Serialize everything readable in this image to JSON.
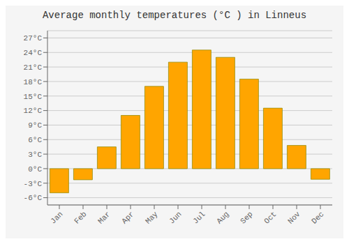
{
  "chart_data": {
    "type": "bar",
    "title": "Average monthly temperatures (°C ) in Linneus",
    "categories": [
      "Jan",
      "Feb",
      "Mar",
      "Apr",
      "May",
      "Jun",
      "Jul",
      "Aug",
      "Sep",
      "Oct",
      "Nov",
      "Dec"
    ],
    "values": [
      -5.0,
      -2.3,
      4.5,
      11.0,
      17.0,
      22.0,
      24.5,
      23.0,
      18.5,
      12.5,
      4.8,
      -2.2
    ],
    "color": "#FFA500",
    "ylim": [
      -7.5,
      28.5
    ],
    "yticks": [
      {
        "value": -6,
        "label": "-6°C"
      },
      {
        "value": -3,
        "label": "-3°C"
      },
      {
        "value": 0,
        "label": "0°C"
      },
      {
        "value": 3,
        "label": "3°C"
      },
      {
        "value": 6,
        "label": "6°C"
      },
      {
        "value": 9,
        "label": "9°C"
      },
      {
        "value": 12,
        "label": "12°C"
      },
      {
        "value": 15,
        "label": "15°C"
      },
      {
        "value": 18,
        "label": "18°C"
      },
      {
        "value": 21,
        "label": "21°C"
      },
      {
        "value": 24,
        "label": "24°C"
      },
      {
        "value": 27,
        "label": "27°C"
      }
    ],
    "grid": true
  }
}
